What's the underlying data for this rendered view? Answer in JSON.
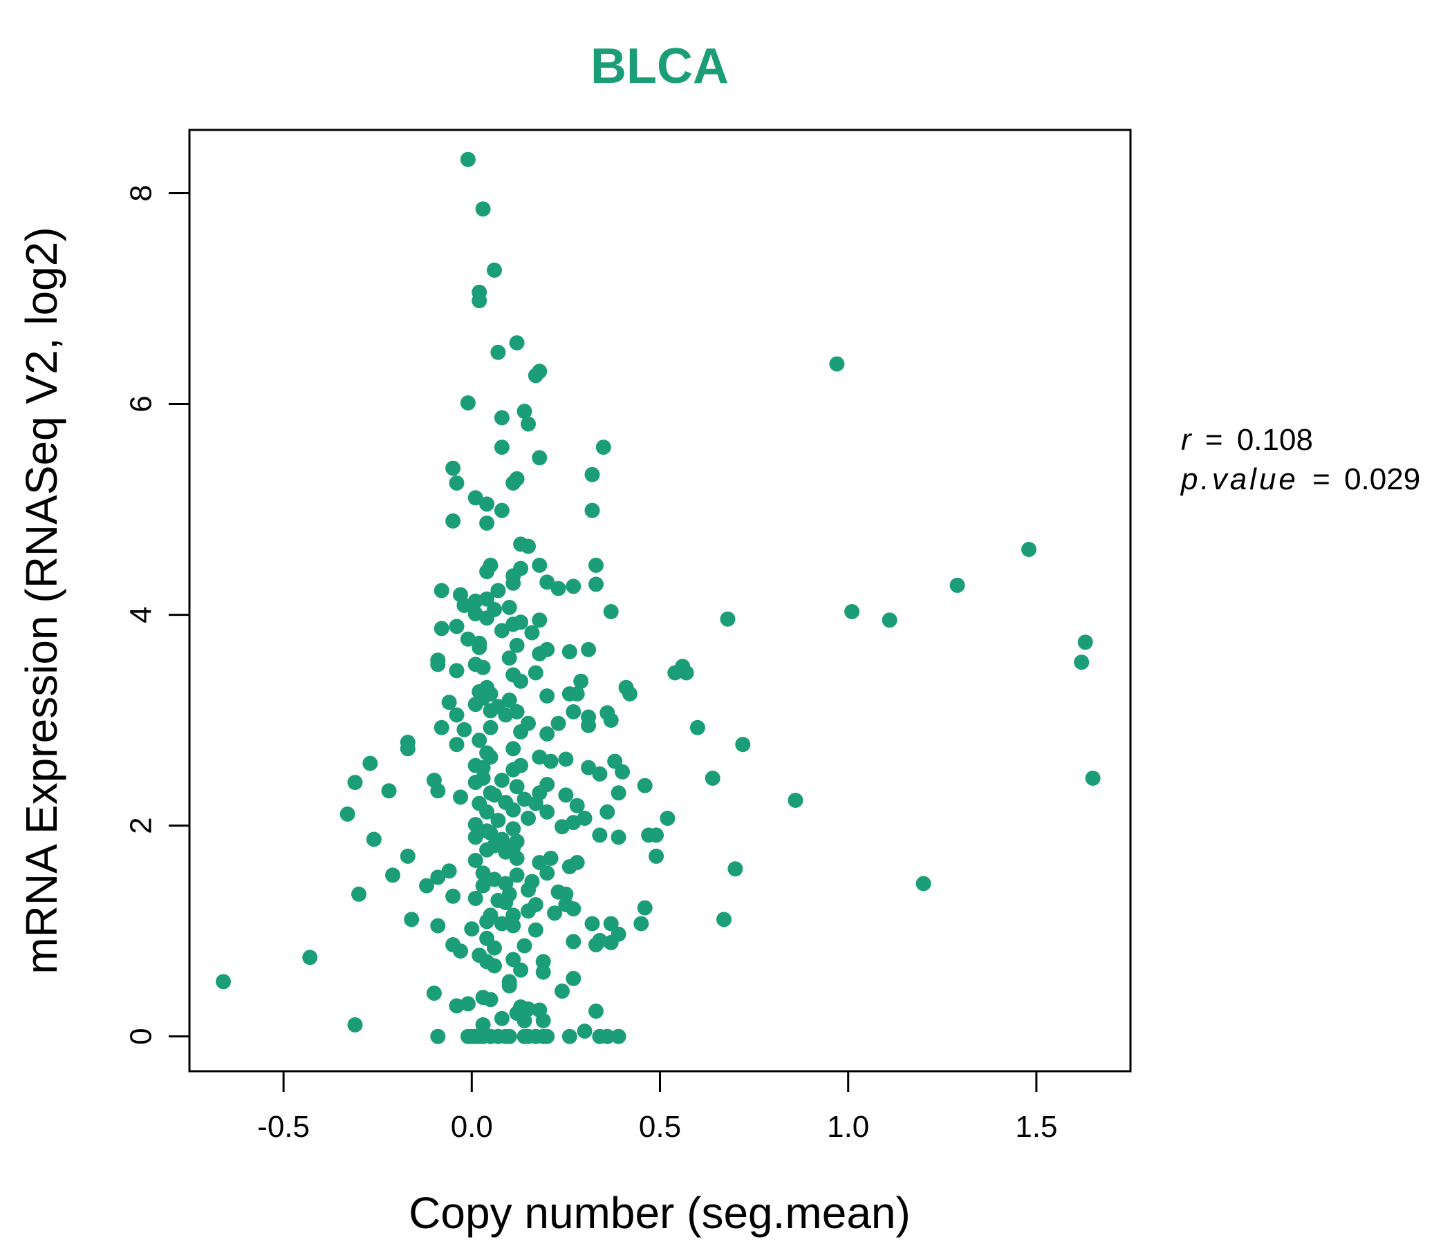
{
  "chart_data": {
    "type": "scatter",
    "title": "BLCA",
    "xlabel": "Copy number (seg.mean)",
    "ylabel": "mRNA Expression (RNASeq V2, log2)",
    "xlim": [
      -0.75,
      1.75
    ],
    "ylim": [
      -0.33,
      8.6
    ],
    "xticks": [
      -0.5,
      0.0,
      0.5,
      1.0,
      1.5
    ],
    "xtick_labels": [
      "-0.5",
      "0.0",
      "0.5",
      "1.0",
      "1.5"
    ],
    "yticks": [
      0,
      2,
      4,
      6,
      8
    ],
    "ytick_labels": [
      "0",
      "2",
      "4",
      "6",
      "8"
    ],
    "grid": false,
    "color": "#1b9e77",
    "stats": {
      "r_label": "r",
      "r_value": "0.108",
      "p_label": "p.value",
      "p_value": "0.029",
      "equals": "="
    },
    "points": [
      [
        -0.01,
        8.32
      ],
      [
        0.03,
        7.85
      ],
      [
        0.06,
        7.27
      ],
      [
        0.02,
        7.06
      ],
      [
        0.02,
        6.98
      ],
      [
        0.12,
        6.58
      ],
      [
        0.07,
        6.49
      ],
      [
        0.18,
        6.31
      ],
      [
        0.17,
        6.27
      ],
      [
        -0.01,
        6.01
      ],
      [
        0.14,
        5.93
      ],
      [
        0.08,
        5.87
      ],
      [
        0.15,
        5.81
      ],
      [
        0.35,
        5.59
      ],
      [
        0.08,
        5.59
      ],
      [
        0.18,
        5.49
      ],
      [
        -0.05,
        5.39
      ],
      [
        0.32,
        5.33
      ],
      [
        0.12,
        5.29
      ],
      [
        0.11,
        5.25
      ],
      [
        -0.04,
        5.25
      ],
      [
        0.01,
        5.11
      ],
      [
        0.04,
        5.05
      ],
      [
        0.08,
        4.99
      ],
      [
        0.32,
        4.99
      ],
      [
        -0.05,
        4.89
      ],
      [
        0.04,
        4.87
      ],
      [
        0.13,
        4.67
      ],
      [
        0.15,
        4.65
      ],
      [
        0.33,
        4.47
      ],
      [
        0.18,
        4.47
      ],
      [
        0.05,
        4.47
      ],
      [
        0.13,
        4.44
      ],
      [
        0.04,
        4.41
      ],
      [
        0.11,
        4.37
      ],
      [
        0.2,
        4.31
      ],
      [
        0.11,
        4.3
      ],
      [
        0.33,
        4.29
      ],
      [
        0.27,
        4.27
      ],
      [
        0.23,
        4.25
      ],
      [
        -0.08,
        4.23
      ],
      [
        0.07,
        4.23
      ],
      [
        -0.03,
        4.19
      ],
      [
        0.04,
        4.15
      ],
      [
        0.01,
        4.13
      ],
      [
        -0.02,
        4.09
      ],
      [
        0.1,
        4.07
      ],
      [
        0.06,
        4.05
      ],
      [
        0.37,
        4.03
      ],
      [
        0.01,
        4.01
      ],
      [
        0.68,
        3.96
      ],
      [
        0.04,
        3.97
      ],
      [
        0.18,
        3.95
      ],
      [
        0.13,
        3.93
      ],
      [
        0.11,
        3.91
      ],
      [
        -0.04,
        3.89
      ],
      [
        -0.08,
        3.87
      ],
      [
        0.08,
        3.85
      ],
      [
        0.16,
        3.83
      ],
      [
        -0.01,
        3.77
      ],
      [
        0.02,
        3.73
      ],
      [
        0.12,
        3.71
      ],
      [
        0.02,
        3.69
      ],
      [
        0.31,
        3.67
      ],
      [
        0.26,
        3.65
      ],
      [
        0.2,
        3.67
      ],
      [
        0.18,
        3.63
      ],
      [
        0.1,
        3.59
      ],
      [
        -0.09,
        3.57
      ],
      [
        -0.09,
        3.53
      ],
      [
        0.01,
        3.53
      ],
      [
        0.03,
        3.5
      ],
      [
        -0.04,
        3.47
      ],
      [
        0.56,
        3.51
      ],
      [
        0.57,
        3.45
      ],
      [
        0.54,
        3.45
      ],
      [
        0.17,
        3.45
      ],
      [
        0.11,
        3.43
      ],
      [
        0.13,
        3.37
      ],
      [
        0.29,
        3.37
      ],
      [
        0.41,
        3.31
      ],
      [
        0.42,
        3.25
      ],
      [
        0.26,
        3.25
      ],
      [
        0.04,
        3.31
      ],
      [
        0.02,
        3.27
      ],
      [
        0.05,
        3.25
      ],
      [
        0.28,
        3.25
      ],
      [
        0.2,
        3.23
      ],
      [
        0.03,
        3.21
      ],
      [
        0.1,
        3.19
      ],
      [
        -0.06,
        3.17
      ],
      [
        0.01,
        3.15
      ],
      [
        0.07,
        3.13
      ],
      [
        0.05,
        3.09
      ],
      [
        0.12,
        3.08
      ],
      [
        0.27,
        3.08
      ],
      [
        0.36,
        3.07
      ],
      [
        0.09,
        3.05
      ],
      [
        -0.04,
        3.05
      ],
      [
        0.31,
        3.03
      ],
      [
        0.37,
        3.0
      ],
      [
        0.15,
        2.97
      ],
      [
        0.23,
        2.97
      ],
      [
        0.31,
        2.95
      ],
      [
        0.6,
        2.93
      ],
      [
        -0.08,
        2.93
      ],
      [
        0.05,
        2.93
      ],
      [
        -0.02,
        2.91
      ],
      [
        0.13,
        2.89
      ],
      [
        0.2,
        2.87
      ],
      [
        0.72,
        2.77
      ],
      [
        0.02,
        2.81
      ],
      [
        -0.17,
        2.79
      ],
      [
        -0.04,
        2.77
      ],
      [
        -0.17,
        2.73
      ],
      [
        0.11,
        2.73
      ],
      [
        0.04,
        2.69
      ],
      [
        0.05,
        2.65
      ],
      [
        0.18,
        2.65
      ],
      [
        0.21,
        2.61
      ],
      [
        0.25,
        2.63
      ],
      [
        0.38,
        2.61
      ],
      [
        -0.27,
        2.59
      ],
      [
        0.13,
        2.57
      ],
      [
        0.01,
        2.57
      ],
      [
        0.31,
        2.55
      ],
      [
        0.03,
        2.55
      ],
      [
        0.11,
        2.53
      ],
      [
        0.4,
        2.51
      ],
      [
        0.34,
        2.49
      ],
      [
        0.64,
        2.45
      ],
      [
        0.03,
        2.45
      ],
      [
        0.08,
        2.43
      ],
      [
        -0.1,
        2.43
      ],
      [
        0.01,
        2.41
      ],
      [
        0.46,
        2.38
      ],
      [
        0.2,
        2.39
      ],
      [
        -0.31,
        2.41
      ],
      [
        0.12,
        2.37
      ],
      [
        -0.09,
        2.33
      ],
      [
        -0.22,
        2.33
      ],
      [
        0.39,
        2.31
      ],
      [
        0.05,
        2.31
      ],
      [
        0.18,
        2.31
      ],
      [
        0.25,
        2.29
      ],
      [
        0.06,
        2.29
      ],
      [
        -0.03,
        2.27
      ],
      [
        0.14,
        2.25
      ],
      [
        0.86,
        2.24
      ],
      [
        0.09,
        2.22
      ],
      [
        0.02,
        2.21
      ],
      [
        0.17,
        2.21
      ],
      [
        0.28,
        2.19
      ],
      [
        0.11,
        2.15
      ],
      [
        0.04,
        2.13
      ],
      [
        0.2,
        2.13
      ],
      [
        0.36,
        2.13
      ],
      [
        -0.33,
        2.11
      ],
      [
        0.15,
        2.07
      ],
      [
        0.52,
        2.07
      ],
      [
        0.3,
        2.07
      ],
      [
        0.07,
        2.05
      ],
      [
        0.27,
        2.03
      ],
      [
        0.01,
        2.01
      ],
      [
        0.24,
        1.99
      ],
      [
        0.11,
        1.97
      ],
      [
        0.04,
        1.95
      ],
      [
        0.05,
        1.93
      ],
      [
        0.34,
        1.91
      ],
      [
        0.47,
        1.91
      ],
      [
        0.49,
        1.91
      ],
      [
        0.39,
        1.89
      ],
      [
        -0.26,
        1.87
      ],
      [
        0.01,
        1.89
      ],
      [
        0.08,
        1.87
      ],
      [
        0.12,
        1.85
      ],
      [
        0.06,
        1.81
      ],
      [
        0.11,
        1.79
      ],
      [
        0.04,
        1.77
      ],
      [
        0.09,
        1.75
      ],
      [
        -0.17,
        1.71
      ],
      [
        0.49,
        1.71
      ],
      [
        0.21,
        1.69
      ],
      [
        0.12,
        1.69
      ],
      [
        0.01,
        1.67
      ],
      [
        0.18,
        1.65
      ],
      [
        0.28,
        1.65
      ],
      [
        0.26,
        1.61
      ],
      [
        0.7,
        1.59
      ],
      [
        -0.06,
        1.57
      ],
      [
        0.03,
        1.55
      ],
      [
        0.2,
        1.55
      ],
      [
        -0.21,
        1.53
      ],
      [
        0.12,
        1.53
      ],
      [
        -0.09,
        1.51
      ],
      [
        0.06,
        1.49
      ],
      [
        0.16,
        1.47
      ],
      [
        1.2,
        1.45
      ],
      [
        0.09,
        1.45
      ],
      [
        0.03,
        1.43
      ],
      [
        -0.12,
        1.43
      ],
      [
        0.15,
        1.39
      ],
      [
        0.23,
        1.37
      ],
      [
        0.25,
        1.35
      ],
      [
        0.1,
        1.35
      ],
      [
        -0.3,
        1.35
      ],
      [
        -0.05,
        1.33
      ],
      [
        0.01,
        1.31
      ],
      [
        0.07,
        1.29
      ],
      [
        0.09,
        1.27
      ],
      [
        0.25,
        1.25
      ],
      [
        0.17,
        1.25
      ],
      [
        0.46,
        1.22
      ],
      [
        0.27,
        1.21
      ],
      [
        0.15,
        1.19
      ],
      [
        0.22,
        1.17
      ],
      [
        0.11,
        1.15
      ],
      [
        0.05,
        1.15
      ],
      [
        -0.16,
        1.11
      ],
      [
        0.67,
        1.11
      ],
      [
        0.04,
        1.09
      ],
      [
        0.32,
        1.07
      ],
      [
        0.37,
        1.07
      ],
      [
        0.45,
        1.07
      ],
      [
        0.08,
        1.07
      ],
      [
        0.11,
        1.05
      ],
      [
        -0.09,
        1.05
      ],
      [
        0.0,
        1.02
      ],
      [
        0.17,
        1.01
      ],
      [
        0.39,
        0.97
      ],
      [
        0.04,
        0.93
      ],
      [
        0.34,
        0.91
      ],
      [
        0.27,
        0.9
      ],
      [
        0.37,
        0.89
      ],
      [
        0.33,
        0.87
      ],
      [
        -0.05,
        0.87
      ],
      [
        0.14,
        0.86
      ],
      [
        0.06,
        0.84
      ],
      [
        -0.03,
        0.81
      ],
      [
        0.02,
        0.77
      ],
      [
        -0.43,
        0.75
      ],
      [
        0.11,
        0.73
      ],
      [
        0.04,
        0.71
      ],
      [
        0.19,
        0.71
      ],
      [
        0.06,
        0.67
      ],
      [
        0.13,
        0.63
      ],
      [
        0.19,
        0.61
      ],
      [
        0.27,
        0.55
      ],
      [
        -0.66,
        0.52
      ],
      [
        0.1,
        0.52
      ],
      [
        0.1,
        0.48
      ],
      [
        0.24,
        0.43
      ],
      [
        -0.1,
        0.41
      ],
      [
        0.03,
        0.37
      ],
      [
        0.05,
        0.35
      ],
      [
        -0.01,
        0.31
      ],
      [
        -0.04,
        0.29
      ],
      [
        0.13,
        0.28
      ],
      [
        0.15,
        0.26
      ],
      [
        0.18,
        0.25
      ],
      [
        0.33,
        0.24
      ],
      [
        0.12,
        0.22
      ],
      [
        0.08,
        0.17
      ],
      [
        0.14,
        0.15
      ],
      [
        0.19,
        0.15
      ],
      [
        -0.31,
        0.11
      ],
      [
        0.03,
        0.11
      ],
      [
        0.3,
        0.05
      ],
      [
        -0.09,
        0.0
      ],
      [
        -0.01,
        0.0
      ],
      [
        0.0,
        0.0
      ],
      [
        0.01,
        0.0
      ],
      [
        0.02,
        0.0
      ],
      [
        0.03,
        0.0
      ],
      [
        0.05,
        0.0
      ],
      [
        0.07,
        0.0
      ],
      [
        0.09,
        0.0
      ],
      [
        0.1,
        0.0
      ],
      [
        0.14,
        0.0
      ],
      [
        0.15,
        0.0
      ],
      [
        0.17,
        0.0
      ],
      [
        0.19,
        0.0
      ],
      [
        0.2,
        0.0
      ],
      [
        0.26,
        0.0
      ],
      [
        0.34,
        0.0
      ],
      [
        0.36,
        0.0
      ],
      [
        0.39,
        0.0
      ],
      [
        0.97,
        6.38
      ],
      [
        1.01,
        4.03
      ],
      [
        1.11,
        3.95
      ],
      [
        1.29,
        4.28
      ],
      [
        1.48,
        4.62
      ],
      [
        1.63,
        3.74
      ],
      [
        1.62,
        3.55
      ],
      [
        1.65,
        2.45
      ]
    ]
  }
}
